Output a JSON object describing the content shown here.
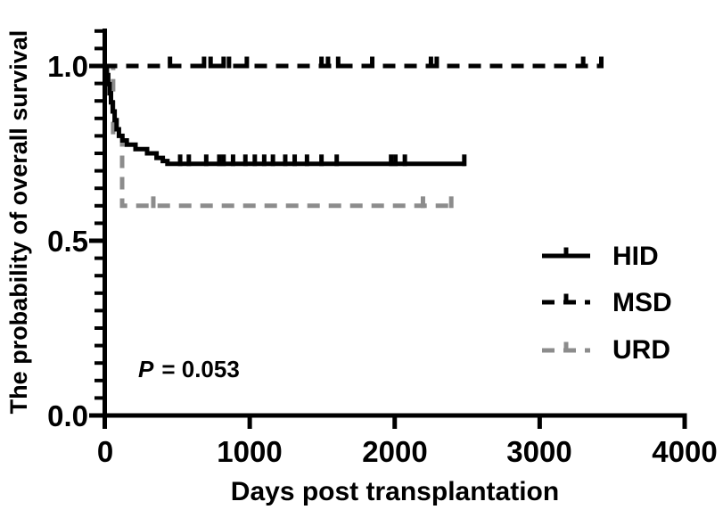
{
  "annotation": {
    "p": "P",
    "rest": "= 0.053"
  },
  "chart_data": {
    "type": "line",
    "subtype": "kaplan_meier_step",
    "title": "",
    "xlabel": "Days post transplantation",
    "ylabel": "The probability of overall survival",
    "xlim": [
      0,
      4000
    ],
    "ylim": [
      0.0,
      1.0
    ],
    "x_ticks": [
      0,
      1000,
      2000,
      3000,
      4000
    ],
    "x_tick_labels": [
      "0",
      "1000",
      "2000",
      "3000",
      "4000"
    ],
    "y_ticks": [
      0.0,
      0.5,
      1.0
    ],
    "y_tick_labels": [
      "0.0",
      "0.5",
      "1.0"
    ],
    "y_minor_tick_step": 0.05,
    "grid": false,
    "legend_position": "right-center",
    "p_value_text": "P = 0.053",
    "colors": {
      "black": "#000000",
      "gray": "#8C8C8C"
    },
    "series": [
      {
        "name": "HID",
        "color": "#000000",
        "line_style": "solid",
        "points": [
          [
            0,
            1.0
          ],
          [
            15,
            0.974
          ],
          [
            24,
            0.948
          ],
          [
            33,
            0.922
          ],
          [
            43,
            0.896
          ],
          [
            55,
            0.87
          ],
          [
            68,
            0.845
          ],
          [
            82,
            0.819
          ],
          [
            98,
            0.8
          ],
          [
            122,
            0.787
          ],
          [
            152,
            0.775
          ],
          [
            212,
            0.762
          ],
          [
            292,
            0.75
          ],
          [
            357,
            0.737
          ],
          [
            400,
            0.728
          ],
          [
            432,
            0.72
          ],
          [
            2490,
            0.72
          ]
        ],
        "censor_times": [
          520,
          580,
          700,
          790,
          820,
          885,
          970,
          1035,
          1100,
          1160,
          1245,
          1310,
          1395,
          1495,
          1600,
          1975,
          2005,
          2070,
          2480
        ]
      },
      {
        "name": "MSD",
        "color": "#000000",
        "line_style": "dashed",
        "points": [
          [
            0,
            1.0
          ],
          [
            3435,
            1.0
          ]
        ],
        "censor_times": [
          450,
          685,
          730,
          820,
          857,
          980,
          1495,
          1540,
          1610,
          1845,
          2250,
          2290,
          3300,
          3425
        ]
      },
      {
        "name": "URD",
        "color": "#8C8C8C",
        "line_style": "dashed",
        "points": [
          [
            0,
            1.0
          ],
          [
            58,
            0.8
          ],
          [
            120,
            0.6
          ],
          [
            2400,
            0.6
          ]
        ],
        "censor_times": [
          335,
          2195,
          2390
        ]
      }
    ]
  }
}
